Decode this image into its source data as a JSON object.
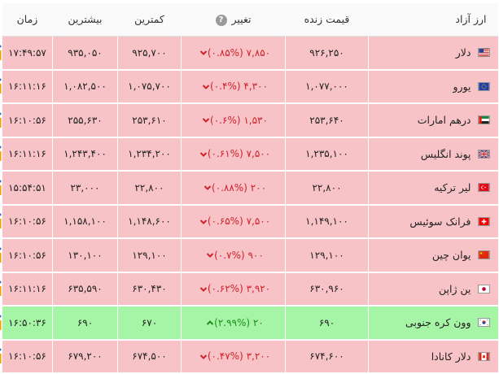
{
  "header": {
    "name": "ارز آزاد",
    "live_price": "قیمت زنده",
    "change": "تغییر",
    "help": "?",
    "low": "کمترین",
    "high": "بیشترین",
    "time": "زمان"
  },
  "colors": {
    "down": "#f8c3c7",
    "up": "#a6f5a6",
    "down_text": "#d0202a",
    "up_text": "#1a8f1a"
  },
  "rows": [
    {
      "name": "دلار",
      "flag": "us-flag-icon",
      "price": "۹۲۶,۲۵۰",
      "change": "۷,۸۵۰ (۰.۸۵%)",
      "direction": "down",
      "low": "۹۲۵,۷۰۰",
      "high": "۹۳۵,۰۵۰",
      "time": "۱۷:۴۹:۵۷"
    },
    {
      "name": "یورو",
      "flag": "eu-flag-icon",
      "price": "۱,۰۷۷,۰۰۰",
      "change": "۴,۳۰۰ (۰.۴%)",
      "direction": "down",
      "low": "۱,۰۷۵,۷۰۰",
      "high": "۱,۰۸۲,۵۰۰",
      "time": "۱۶:۱۱:۱۶"
    },
    {
      "name": "درهم امارات",
      "flag": "ae-flag-icon",
      "price": "۲۵۳,۶۴۰",
      "change": "۱,۵۳۰ (۰.۶%)",
      "direction": "down",
      "low": "۲۵۳,۶۱۰",
      "high": "۲۵۵,۶۳۰",
      "time": "۱۶:۱۰:۵۶"
    },
    {
      "name": "پوند انگلیس",
      "flag": "gb-flag-icon",
      "price": "۱,۲۳۵,۱۰۰",
      "change": "۷,۵۰۰ (۰.۶۱%)",
      "direction": "down",
      "low": "۱,۲۳۴,۲۰۰",
      "high": "۱,۲۴۳,۴۰۰",
      "time": "۱۶:۱۱:۱۶"
    },
    {
      "name": "لیر ترکیه",
      "flag": "tr-flag-icon",
      "price": "۲۲,۸۰۰",
      "change": "۲۰۰ (۰.۸۸%)",
      "direction": "down",
      "low": "۲۲,۸۰۰",
      "high": "۲۳,۰۰۰",
      "time": "۱۵:۵۴:۵۱"
    },
    {
      "name": "فرانک سوئیس",
      "flag": "ch-flag-icon",
      "price": "۱,۱۴۹,۱۰۰",
      "change": "۷,۵۰۰ (۰.۶۵%)",
      "direction": "down",
      "low": "۱,۱۴۸,۶۰۰",
      "high": "۱,۱۵۸,۱۰۰",
      "time": "۱۶:۱۰:۵۶"
    },
    {
      "name": "یوان چین",
      "flag": "cn-flag-icon",
      "price": "۱۲۹,۱۰۰",
      "change": "۹۰۰ (۰.۷%)",
      "direction": "down",
      "low": "۱۲۹,۱۰۰",
      "high": "۱۳۰,۱۰۰",
      "time": "۱۶:۱۰:۵۶"
    },
    {
      "name": "ین ژاپن",
      "flag": "jp-flag-icon",
      "price": "۶۳۰,۹۶۰",
      "change": "۳,۹۲۰ (۰.۶۲%)",
      "direction": "down",
      "low": "۶۳۰,۴۳۰",
      "high": "۶۳۵,۵۹۰",
      "time": "۱۶:۱۱:۱۶"
    },
    {
      "name": "وون کره جنوبی",
      "flag": "kr-flag-icon",
      "price": "۶۹۰",
      "change": "۲۰ (۲.۹۹%)",
      "direction": "up",
      "low": "۶۷۰",
      "high": "۶۹۰",
      "time": "۱۶:۵۰:۳۶"
    },
    {
      "name": "دلار کانادا",
      "flag": "ca-flag-icon",
      "price": "۶۷۴,۶۰۰",
      "change": "۳,۲۰۰ (۰.۴۷%)",
      "direction": "down",
      "low": "۶۷۴,۵۰۰",
      "high": "۶۷۹,۲۰۰",
      "time": "۱۶:۱۰:۵۶"
    }
  ]
}
